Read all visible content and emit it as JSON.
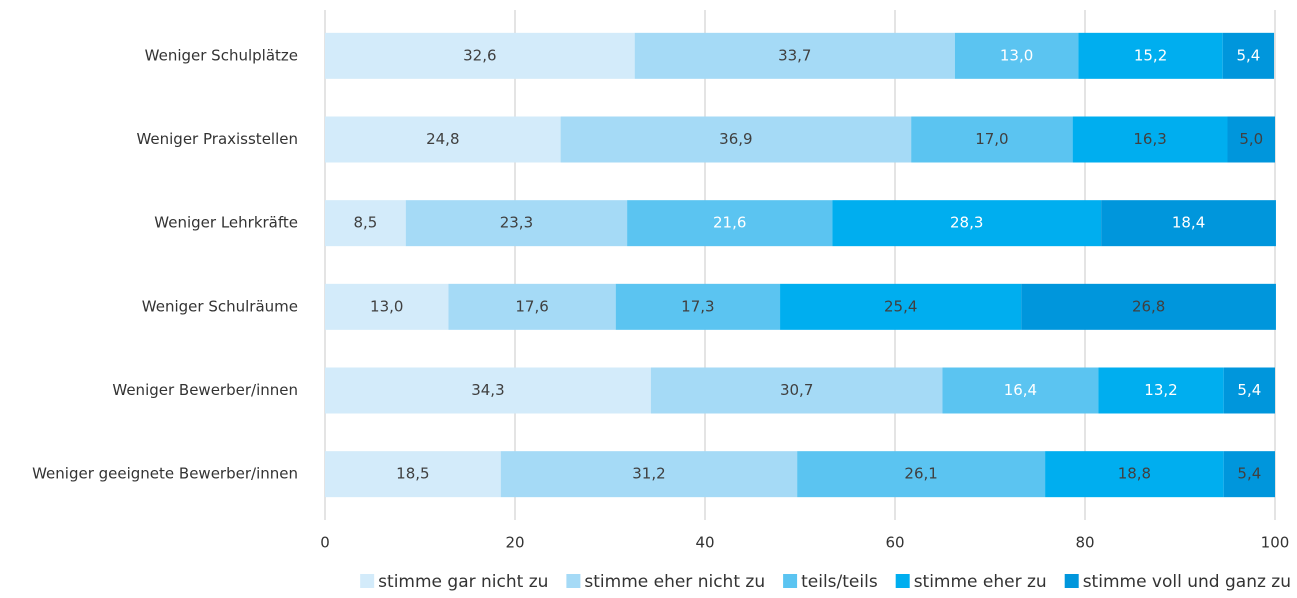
{
  "chart_data": {
    "type": "stacked_barh",
    "categories": [
      "Weniger Schulplätze",
      "Weniger Praxisstellen",
      "Weniger Lehrkräfte",
      "Weniger Schulräume",
      "Weniger Bewerber/innen",
      "Weniger geeignete Bewerber/innen"
    ],
    "series": [
      {
        "name": "stimme gar nicht zu",
        "color": "#d3ebfa",
        "values": [
          32.6,
          24.8,
          8.5,
          13.0,
          34.3,
          18.5
        ],
        "value_labels": [
          "32,6",
          "24,8",
          "8,5",
          "13,0",
          "34,3",
          "18,5"
        ]
      },
      {
        "name": "stimme eher nicht zu",
        "color": "#a5daf6",
        "values": [
          33.7,
          36.9,
          23.3,
          17.6,
          30.7,
          31.2
        ],
        "value_labels": [
          "33,7",
          "36,9",
          "23,3",
          "17,6",
          "30,7",
          "31,2"
        ]
      },
      {
        "name": "teils/teils",
        "color": "#5bc4f1",
        "values": [
          13.0,
          17.0,
          21.6,
          17.3,
          16.4,
          26.1
        ],
        "value_labels": [
          "13,0",
          "17,0",
          "21,6",
          "17,3",
          "16,4",
          "26,1"
        ]
      },
      {
        "name": "stimme eher zu",
        "color": "#00aeef",
        "values": [
          15.2,
          16.3,
          28.3,
          25.4,
          13.2,
          18.8
        ],
        "value_labels": [
          "15,2",
          "16,3",
          "28,3",
          "25,4",
          "13,2",
          "18,8"
        ]
      },
      {
        "name": "stimme voll und ganz zu",
        "color": "#0096dc",
        "values": [
          5.4,
          5.0,
          18.4,
          26.8,
          5.4,
          5.4
        ],
        "value_labels": [
          "5,4",
          "5,0",
          "18,4",
          "26,8",
          "5,4",
          "5,4"
        ]
      }
    ],
    "xlim": [
      0,
      100
    ],
    "xticks": [
      0,
      20,
      40,
      60,
      80,
      100
    ],
    "grid": true,
    "legend": "bottom"
  }
}
